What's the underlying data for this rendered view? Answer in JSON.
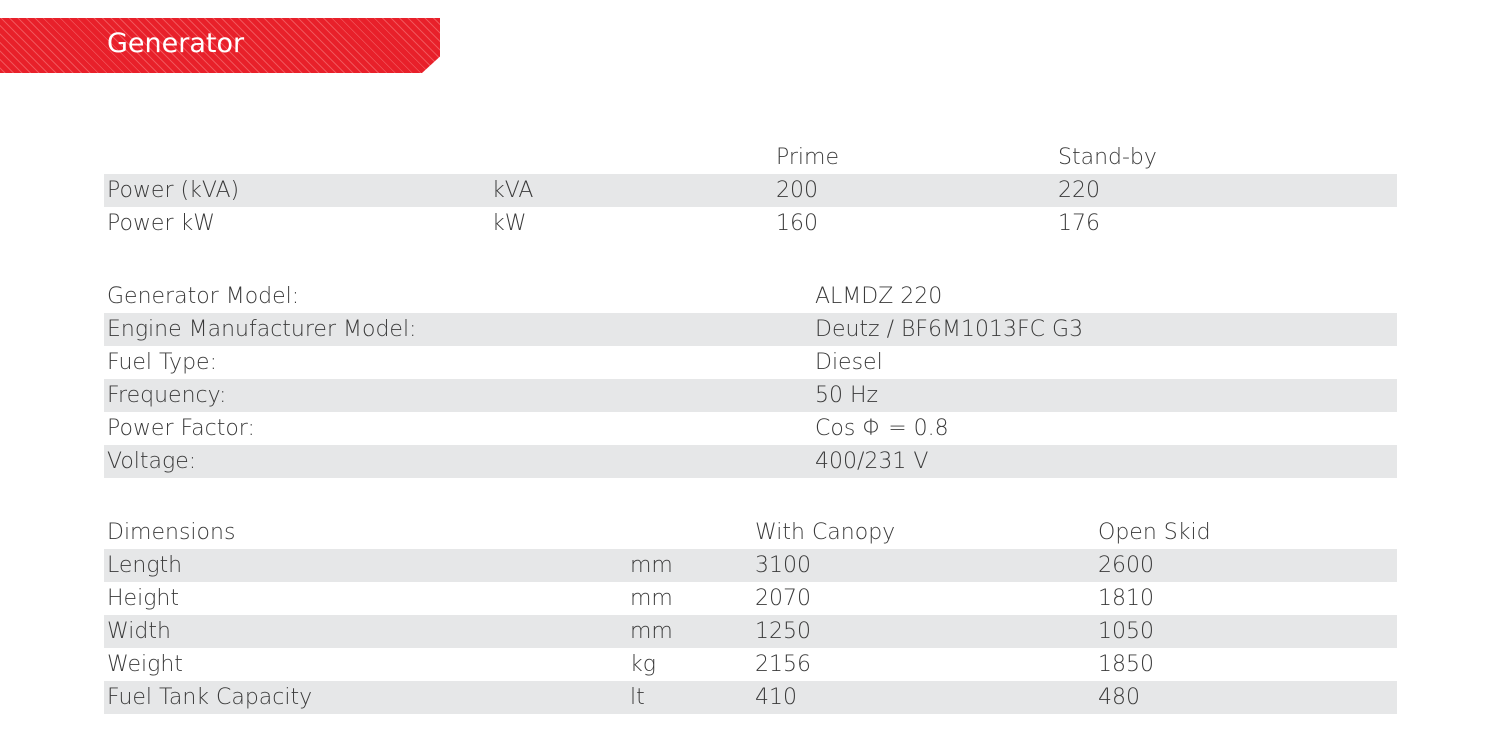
{
  "header": {
    "title": "Generator",
    "color": "#e8202a"
  },
  "power": {
    "columns": [
      "Prime",
      "Stand-by"
    ],
    "rows": [
      {
        "label": "Power (kVA)",
        "unit": "kVA",
        "prime": "200",
        "standby": "220"
      },
      {
        "label": "Power kW",
        "unit": "kW",
        "prime": "160",
        "standby": "176"
      }
    ]
  },
  "specs": [
    {
      "label": "Generator Model:",
      "value": "ALMDZ 220"
    },
    {
      "label": "Engine Manufacturer Model:",
      "value": "Deutz / BF6M1013FC G3"
    },
    {
      "label": "Fuel Type:",
      "value": "Diesel"
    },
    {
      "label": "Frequency:",
      "value": "50 Hz"
    },
    {
      "label": "Power Factor:",
      "value": "Cos Φ = 0.8"
    },
    {
      "label": "Voltage:",
      "value": "400/231 V"
    }
  ],
  "dimensions": {
    "header": {
      "label": "Dimensions",
      "canopy": "With Canopy",
      "skid": "Open Skid"
    },
    "rows": [
      {
        "label": "Length",
        "unit": "mm",
        "canopy": "3100",
        "skid": "2600"
      },
      {
        "label": "Height",
        "unit": "mm",
        "canopy": "2070",
        "skid": "1810"
      },
      {
        "label": "Width",
        "unit": "mm",
        "canopy": "1250",
        "skid": "1050"
      },
      {
        "label": "Weight",
        "unit": "kg",
        "canopy": "2156",
        "skid": "1850"
      },
      {
        "label": "Fuel Tank Capacity",
        "unit": "lt",
        "canopy": "410",
        "skid": "480"
      }
    ]
  }
}
